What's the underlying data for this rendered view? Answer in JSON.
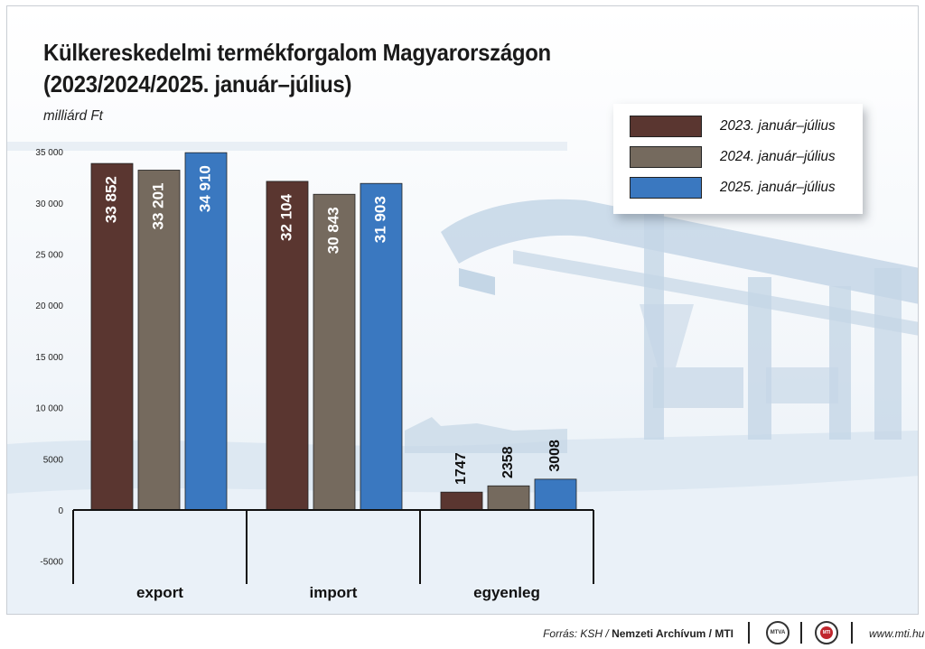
{
  "title_line1": "Külkereskedelmi termékforgalom Magyarországon",
  "title_line2": "(2023/2024/2025. január–július)",
  "unit": "milliárd Ft",
  "source_prefix": "Forrás: KSH / ",
  "source_bold": "Nemzeti Archívum / MTI",
  "website": "www.mti.hu",
  "logos": {
    "mtva": "MTVA",
    "mti": "MTI"
  },
  "chart_data": {
    "type": "bar",
    "categories": [
      "export",
      "import",
      "egyenleg"
    ],
    "series": [
      {
        "name": "2023. január–július",
        "values": [
          33852,
          32104,
          1747
        ],
        "labels": [
          "33 852",
          "32 104",
          "1747"
        ],
        "color": "#5a3630"
      },
      {
        "name": "2024. január–július",
        "values": [
          33201,
          30843,
          2358
        ],
        "labels": [
          "33 201",
          "30 843",
          "2358"
        ],
        "color": "#756a5e"
      },
      {
        "name": "2025. január–július",
        "values": [
          34910,
          31903,
          3008
        ],
        "labels": [
          "34 910",
          "31 903",
          "3008"
        ],
        "color": "#3a78c0"
      }
    ],
    "ylim": [
      -5000,
      35000
    ],
    "yticks": [
      35000,
      30000,
      25000,
      20000,
      15000,
      10000,
      5000,
      0,
      -5000
    ],
    "ytick_labels": [
      "35 000",
      "30 000",
      "25 000",
      "20 000",
      "15 000",
      "10 000",
      "5000",
      "0",
      "-5000"
    ],
    "legend_position": "top-right",
    "grid": false
  }
}
